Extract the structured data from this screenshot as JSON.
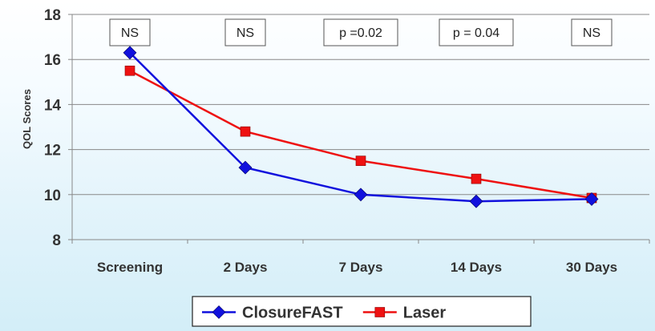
{
  "chart_data": {
    "type": "line",
    "categories": [
      "Screening",
      "2 Days",
      "7 Days",
      "14 Days",
      "30 Days"
    ],
    "series": [
      {
        "name": "ClosureFAST",
        "values": [
          16.3,
          11.2,
          10.0,
          9.7,
          9.8
        ],
        "color": "#1111dd",
        "marker": "diamond"
      },
      {
        "name": "Laser",
        "values": [
          15.5,
          12.8,
          11.5,
          10.7,
          9.85
        ],
        "color": "#ee1111",
        "marker": "square"
      }
    ],
    "ylabel": "QOL Scores",
    "ylim": [
      8,
      18
    ],
    "yticks": [
      8,
      10,
      12,
      14,
      16,
      18
    ],
    "grid": "horizontal",
    "legend": "bottom",
    "annotations": [
      "NS",
      "NS",
      "p =0.02",
      "p = 0.04",
      "NS"
    ]
  }
}
